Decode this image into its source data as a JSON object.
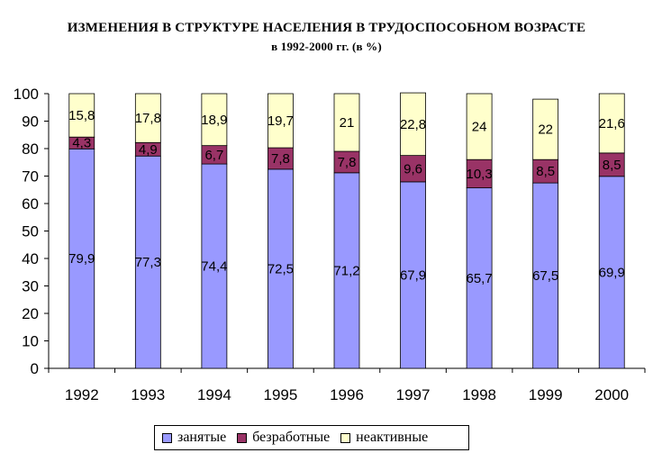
{
  "chart_data": {
    "type": "bar",
    "stacked": true,
    "title": "ИЗМЕНЕНИЯ В СТРУКТУРЕ НАСЕЛЕНИЯ В ТРУДОСПОСОБНОМ ВОЗРАСТЕ",
    "subtitle": "в 1992-2000 гг. (в %)",
    "categories": [
      "1992",
      "1993",
      "1994",
      "1995",
      "1996",
      "1997",
      "1998",
      "1999",
      "2000"
    ],
    "series": [
      {
        "name": "занятые",
        "color": "#9999FF",
        "values": [
          79.9,
          77.3,
          74.4,
          72.5,
          71.2,
          67.9,
          65.7,
          67.5,
          69.9
        ],
        "labels": [
          "79,9",
          "77,3",
          "74,4",
          "72,5",
          "71,2",
          "67,9",
          "65,7",
          "67,5",
          "69,9"
        ]
      },
      {
        "name": "безработные",
        "color": "#993366",
        "values": [
          4.3,
          4.9,
          6.7,
          7.8,
          7.8,
          9.6,
          10.3,
          8.5,
          8.5
        ],
        "labels": [
          "4,3",
          "4,9",
          "6,7",
          "7,8",
          "7,8",
          "9,6",
          "10,3",
          "8,5",
          "8,5"
        ]
      },
      {
        "name": "неактивные",
        "color": "#FFFFCC",
        "values": [
          15.8,
          17.8,
          18.9,
          19.7,
          21,
          22.8,
          24,
          22,
          21.6
        ],
        "labels": [
          "15,8",
          "17,8",
          "18,9",
          "19,7",
          "21",
          "22,8",
          "24",
          "22",
          "21,6"
        ]
      }
    ],
    "y_ticks": [
      "0",
      "10",
      "20",
      "30",
      "40",
      "50",
      "60",
      "70",
      "80",
      "90",
      "100"
    ],
    "ylim": [
      0,
      100
    ],
    "grid": false,
    "legend_position": "bottom"
  }
}
